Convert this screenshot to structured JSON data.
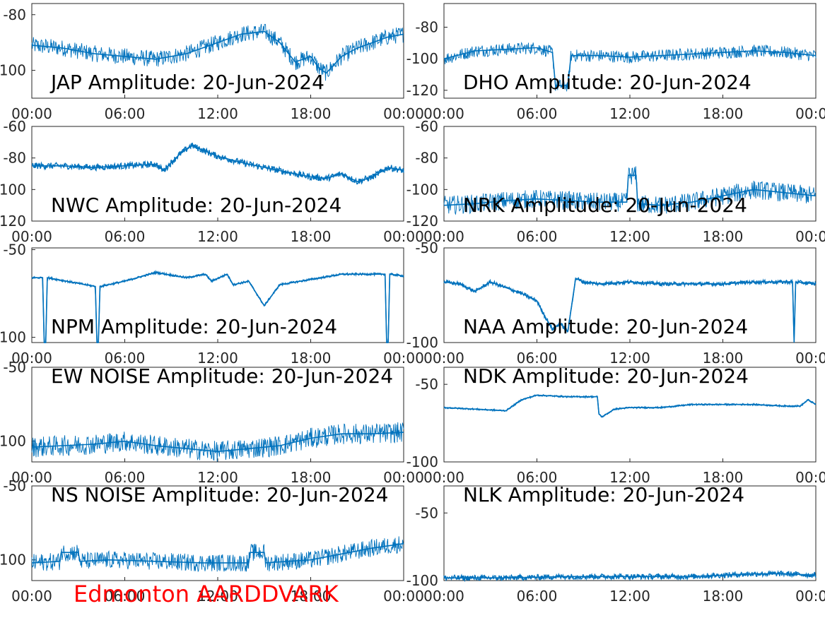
{
  "figure_label": "Edmonton AARDDVARK",
  "colors": {
    "trace": "#0072bd",
    "label": "#ff0000",
    "axis": "#262626"
  },
  "chart_data": [
    {
      "type": "line",
      "title": "JAP Amplitude: 20-Jun-2024",
      "x_ticks": [
        "00:00",
        "06:00",
        "12:00",
        "18:00",
        "00:00"
      ],
      "y_ticks": [
        "-80",
        "-100"
      ],
      "y_tick_values": [
        -80,
        -100
      ],
      "ylim": [
        -110,
        -76
      ],
      "x": [
        0,
        2,
        4,
        6,
        8,
        10,
        12,
        13.5,
        15,
        16,
        17,
        18,
        18.5,
        19,
        20,
        21,
        22,
        23,
        24
      ],
      "y": [
        -91,
        -92,
        -94,
        -95,
        -96,
        -94,
        -90,
        -87,
        -86,
        -90,
        -97,
        -95,
        -99,
        -101,
        -95,
        -92,
        -90,
        -88,
        -87
      ],
      "noise": 3
    },
    {
      "type": "line",
      "title": "DHO Amplitude: 20-Jun-2024",
      "x_ticks": [
        "00:00",
        "06:00",
        "12:00",
        "18:00",
        "00:00"
      ],
      "y_ticks": [
        "-80",
        "-100",
        "-120"
      ],
      "y_tick_values": [
        -80,
        -100,
        -120
      ],
      "ylim": [
        -125,
        -65
      ],
      "x": [
        0,
        2,
        4,
        6,
        7,
        7.2,
        8,
        8.2,
        10,
        12,
        14,
        16,
        18,
        20,
        22,
        24
      ],
      "y": [
        -100,
        -95,
        -94,
        -93,
        -96,
        -117,
        -117,
        -98,
        -98,
        -99,
        -98,
        -97,
        -96,
        -95,
        -96,
        -98
      ],
      "noise": 4
    },
    {
      "type": "line",
      "title": "NWC Amplitude: 20-Jun-2024",
      "x_ticks": [
        "00:00",
        "06:00",
        "12:00",
        "18:00",
        "00:00"
      ],
      "y_ticks": [
        "-60",
        "-80",
        "-100",
        "-120"
      ],
      "y_tick_values": [
        -60,
        -80,
        -100,
        -120
      ],
      "ylim": [
        -120,
        -60
      ],
      "x": [
        0,
        2,
        4,
        6,
        8,
        8.5,
        9.5,
        10.3,
        12,
        14,
        16,
        18,
        19,
        20,
        21,
        22,
        23,
        24
      ],
      "y": [
        -85,
        -85,
        -86,
        -85,
        -84,
        -88,
        -78,
        -72,
        -79,
        -84,
        -88,
        -92,
        -93,
        -90,
        -95,
        -92,
        -86,
        -88
      ],
      "noise": 2
    },
    {
      "type": "line",
      "title": "NRK Amplitude: 20-Jun-2024",
      "x_ticks": [
        "00:00",
        "06:00",
        "12:00",
        "18:00",
        "00:00"
      ],
      "y_ticks": [
        "-60",
        "-80",
        "-100",
        "-120"
      ],
      "y_tick_values": [
        -60,
        -80,
        -100,
        -120
      ],
      "ylim": [
        -120,
        -60
      ],
      "x": [
        0,
        2,
        4,
        6,
        8,
        10,
        11.8,
        11.9,
        12.4,
        12.5,
        14,
        16,
        18,
        20,
        22,
        24
      ],
      "y": [
        -110,
        -109,
        -107,
        -106,
        -107,
        -108,
        -108,
        -91,
        -91,
        -109,
        -110,
        -108,
        -104,
        -100,
        -102,
        -104
      ],
      "noise": 6
    },
    {
      "type": "line",
      "title": "NPM Amplitude: 20-Jun-2024",
      "x_ticks": [
        "00:00",
        "06:00",
        "12:00",
        "18:00",
        "00:00"
      ],
      "y_ticks": [
        "-50",
        "-100"
      ],
      "y_tick_values": [
        -50,
        -100
      ],
      "ylim": [
        -103,
        -49
      ],
      "x": [
        0,
        0.7,
        0.8,
        0.9,
        1.0,
        4.1,
        4.2,
        4.3,
        4.4,
        6,
        8,
        10,
        11.2,
        11.6,
        12.6,
        13,
        14,
        15,
        16,
        18,
        20,
        22.8,
        22.9,
        23,
        23.1,
        24
      ],
      "y": [
        -66,
        -66,
        -103,
        -103,
        -66,
        -71,
        -103,
        -103,
        -71,
        -68,
        -63,
        -66,
        -64,
        -68,
        -64,
        -70,
        -68,
        -82,
        -70,
        -67,
        -64,
        -64,
        -103,
        -103,
        -64,
        -65
      ],
      "noise": 0.6
    },
    {
      "type": "line",
      "title": "NAA Amplitude: 20-Jun-2024",
      "x_ticks": [
        "00:00",
        "06:00",
        "12:00",
        "18:00",
        "00:00"
      ],
      "y_ticks": [
        "-50",
        "-100"
      ],
      "y_tick_values": [
        -50,
        -100
      ],
      "ylim": [
        -100,
        -50
      ],
      "x": [
        0,
        1,
        2,
        3,
        4,
        5,
        6,
        6.5,
        7,
        7.5,
        8,
        8.5,
        9,
        10,
        12,
        14,
        16,
        18,
        20,
        21,
        22,
        22.5,
        22.6,
        22.7,
        24
      ],
      "y": [
        -68,
        -69,
        -73,
        -68,
        -71,
        -74,
        -78,
        -86,
        -93,
        -90,
        -94,
        -66,
        -68,
        -69,
        -68,
        -69,
        -69,
        -69,
        -68,
        -68,
        -68,
        -68,
        -100,
        -68,
        -69
      ],
      "noise": 1
    },
    {
      "type": "line",
      "title": "EW NOISE Amplitude: 20-Jun-2024",
      "x_ticks": [
        "00:00",
        "06:00",
        "12:00",
        "18:00",
        "00:00"
      ],
      "y_ticks": [
        "-50",
        "-100"
      ],
      "y_tick_values": [
        -50,
        -100
      ],
      "ylim": [
        -114,
        -50
      ],
      "x": [
        0,
        2,
        4,
        6,
        8,
        10,
        12,
        14,
        16,
        18,
        20,
        22,
        24
      ],
      "y": [
        -104,
        -103,
        -102,
        -100,
        -103,
        -105,
        -107,
        -105,
        -103,
        -98,
        -95,
        -95,
        -94
      ],
      "noise": 7
    },
    {
      "type": "line",
      "title": "NDK Amplitude: 20-Jun-2024",
      "x_ticks": [
        "00:00",
        "06:00",
        "12:00",
        "18:00",
        "00:00"
      ],
      "y_ticks": [
        "-50",
        "-100"
      ],
      "y_tick_values": [
        -50,
        -100
      ],
      "ylim": [
        -100,
        -39
      ],
      "x": [
        0,
        2,
        4,
        5,
        6,
        8,
        9,
        9.9,
        10,
        10.2,
        11,
        12,
        14,
        15,
        16,
        18,
        20,
        22,
        23,
        23.5,
        24
      ],
      "y": [
        -65,
        -66,
        -67,
        -60,
        -57,
        -58,
        -58,
        -58,
        -69,
        -71,
        -66,
        -65,
        -65,
        -64,
        -63,
        -63,
        -63,
        -64,
        -64,
        -60,
        -63
      ],
      "noise": 0.5
    },
    {
      "type": "line",
      "title": "NS NOISE Amplitude: 20-Jun-2024",
      "x_ticks": [
        "00:00",
        "06:00",
        "12:00",
        "18:00",
        "00:00"
      ],
      "y_ticks": [
        "-50",
        "-100"
      ],
      "y_tick_values": [
        -50,
        -100
      ],
      "ylim": [
        -114,
        -50
      ],
      "x": [
        0,
        1.8,
        1.9,
        3,
        3.1,
        5,
        8,
        11,
        14,
        14.1,
        15,
        15.1,
        18,
        20,
        22,
        24
      ],
      "y": [
        -102,
        -101,
        -95,
        -95,
        -101,
        -100,
        -101,
        -102,
        -102,
        -95,
        -95,
        -102,
        -100,
        -96,
        -92,
        -89
      ],
      "noise": 6
    },
    {
      "type": "line",
      "title": "NLK Amplitude: 20-Jun-2024",
      "x_ticks": [
        "00:00",
        "06:00",
        "12:00",
        "18:00",
        "00:00"
      ],
      "y_ticks": [
        "-50",
        "-100"
      ],
      "y_tick_values": [
        -50,
        -100
      ],
      "ylim": [
        -100,
        -30
      ],
      "x": [
        0,
        4,
        8,
        12,
        16,
        18,
        20,
        22,
        24
      ],
      "y": [
        -98,
        -98,
        -97,
        -97,
        -97,
        -96,
        -95,
        -95,
        -96
      ],
      "noise": 2
    }
  ]
}
